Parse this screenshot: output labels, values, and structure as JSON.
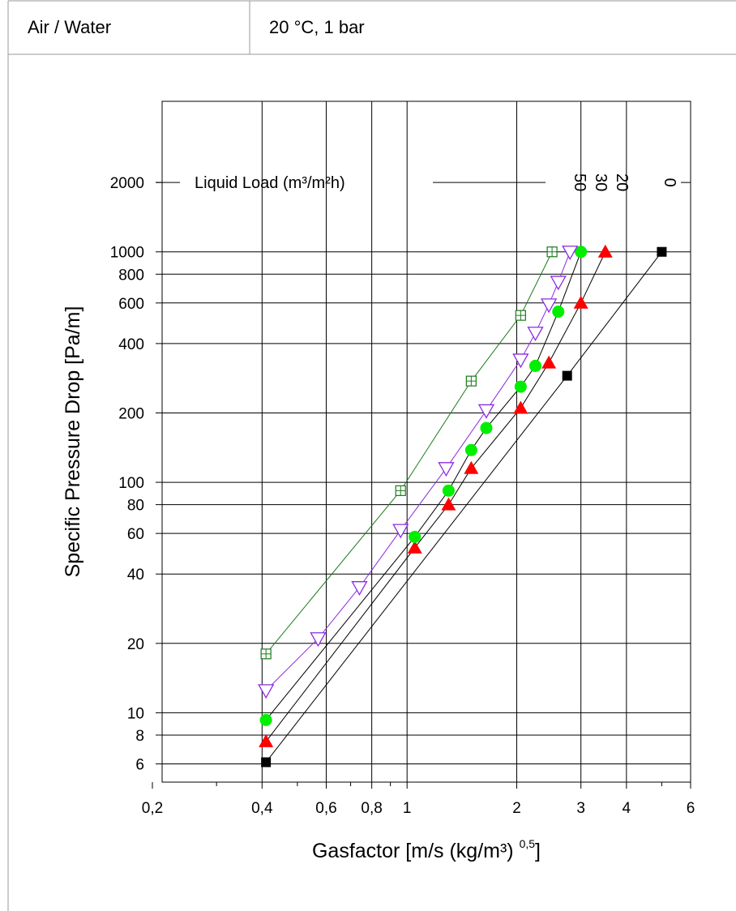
{
  "header": {
    "left": "Air / Water",
    "right": "20 °C, 1 bar"
  },
  "chart_data": {
    "type": "scatter",
    "xlabel": "Gasfactor [m/s (kg/m³) ",
    "xlabel_sup": "0,5",
    "xlabel_end": "]",
    "ylabel": "Specific Pressure Drop [Pa/m]",
    "xscale": "log",
    "yscale": "log",
    "xlim": [
      0.2,
      6
    ],
    "ylim": [
      5,
      4500
    ],
    "grid": true,
    "x_ticks": [
      {
        "v": 0.2,
        "label": "0,2"
      },
      {
        "v": 0.4,
        "label": "0,4"
      },
      {
        "v": 0.6,
        "label": "0,6"
      },
      {
        "v": 0.8,
        "label": "0,8"
      },
      {
        "v": 1,
        "label": "1"
      },
      {
        "v": 2,
        "label": "2"
      },
      {
        "v": 3,
        "label": "3"
      },
      {
        "v": 4,
        "label": "4"
      },
      {
        "v": 6,
        "label": "6"
      }
    ],
    "x_minor": [
      0.3,
      0.5,
      0.7,
      0.9,
      5
    ],
    "x_grid": [
      0.4,
      0.6,
      0.8,
      1,
      2,
      3,
      4
    ],
    "y_ticks": [
      {
        "v": 6,
        "label": "6"
      },
      {
        "v": 8,
        "label": "8"
      },
      {
        "v": 10,
        "label": "10"
      },
      {
        "v": 20,
        "label": "20"
      },
      {
        "v": 40,
        "label": "40"
      },
      {
        "v": 60,
        "label": "60"
      },
      {
        "v": 80,
        "label": "80"
      },
      {
        "v": 100,
        "label": "100"
      },
      {
        "v": 200,
        "label": "200"
      },
      {
        "v": 400,
        "label": "400"
      },
      {
        "v": 600,
        "label": "600"
      },
      {
        "v": 800,
        "label": "800"
      },
      {
        "v": 1000,
        "label": "1000"
      },
      {
        "v": 2000,
        "label": "2000"
      }
    ],
    "y_grid": [
      6,
      8,
      10,
      20,
      40,
      60,
      80,
      100,
      200,
      400,
      600,
      800,
      1000
    ],
    "legend_title": "Liquid Load (m³/m²h)",
    "series": [
      {
        "name": "0",
        "marker": "square",
        "color": "#000000",
        "line": "#000000",
        "x": [
          0.41,
          2.75,
          5.0
        ],
        "y": [
          6.1,
          290,
          1000
        ]
      },
      {
        "name": "20",
        "marker": "triangle",
        "color": "#ff0000",
        "line": "#000000",
        "x": [
          0.41,
          1.05,
          1.3,
          1.5,
          2.05,
          2.45,
          3.0,
          3.5
        ],
        "y": [
          7.5,
          52,
          80,
          115,
          210,
          330,
          600,
          1000
        ]
      },
      {
        "name": "30",
        "marker": "circle",
        "color": "#00ee00",
        "line": "#000000",
        "x": [
          0.41,
          1.05,
          1.3,
          1.5,
          1.65,
          2.05,
          2.25,
          2.6,
          3.0
        ],
        "y": [
          9.3,
          58,
          92,
          138,
          172,
          260,
          320,
          550,
          1000
        ]
      },
      {
        "name": "50",
        "marker": "triangle-down",
        "color": "#8b2be2",
        "line": "#8b2be2",
        "x": [
          0.41,
          0.57,
          0.74,
          0.96,
          1.28,
          1.65,
          2.05,
          2.25,
          2.45,
          2.6,
          2.8
        ],
        "y": [
          12.5,
          21,
          35,
          62,
          115,
          205,
          340,
          445,
          590,
          740,
          1000
        ]
      },
      {
        "name": "",
        "marker": "square-plus",
        "color": "#1a7a1a",
        "line": "#1a7a1a",
        "x": [
          0.41,
          0.96,
          1.5,
          2.05,
          2.5
        ],
        "y": [
          18,
          92,
          275,
          530,
          1000
        ]
      }
    ]
  }
}
